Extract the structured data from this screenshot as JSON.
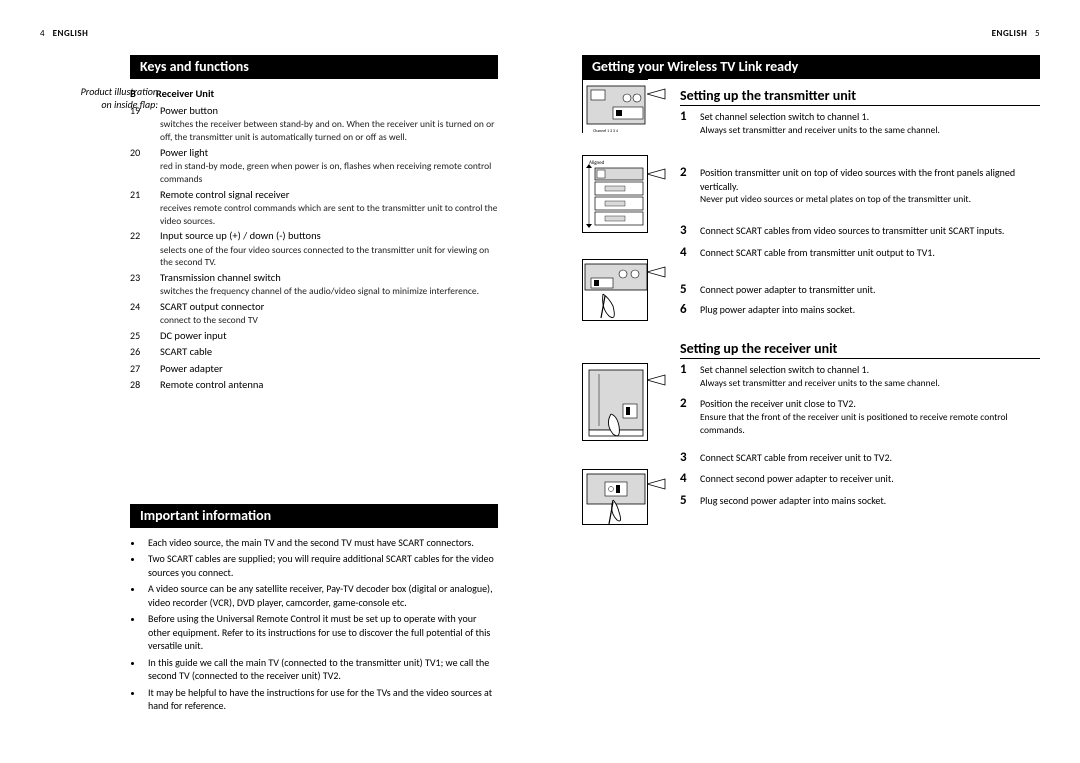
{
  "left": {
    "page_num": "4",
    "lang": "ENGLISH",
    "margin_note_l1": "Product illustration",
    "margin_note_l2": "on inside flap:",
    "bar_keys": "Keys and functions",
    "sub_b": "B",
    "sub_receiver": "Receiver Unit",
    "keys": [
      {
        "n": "19",
        "term": "Power button",
        "desc": "switches the receiver between stand-by and on. When the receiver unit is turned on or off, the transmitter unit is automatically turned on or off as well."
      },
      {
        "n": "20",
        "term": "Power light",
        "desc": "red in stand-by mode, green when power is on, flashes when receiving remote control commands"
      },
      {
        "n": "21",
        "term": "Remote control signal receiver",
        "desc": "receives remote control commands which are sent to the transmitter unit to control the video sources."
      },
      {
        "n": "22",
        "term": "Input source up (+) / down (-) buttons",
        "desc": "selects one of the four video sources connected to the transmitter unit for viewing on the second TV."
      },
      {
        "n": "23",
        "term": "Transmission channel switch",
        "desc": "switches the frequency channel of the audio/video signal to minimize interference."
      },
      {
        "n": "24",
        "term": "SCART output connector",
        "desc": "connect to the second TV"
      },
      {
        "n": "25",
        "term": "DC power input",
        "desc": ""
      },
      {
        "n": "26",
        "term": "SCART cable",
        "desc": ""
      },
      {
        "n": "27",
        "term": "Power adapter",
        "desc": ""
      },
      {
        "n": "28",
        "term": "Remote control antenna",
        "desc": ""
      }
    ],
    "bar_important": "Important information",
    "important": [
      "Each video source, the main TV and the second TV must have SCART connectors.",
      "Two SCART cables are supplied; you will require additional SCART cables for the video sources you connect.",
      "A video source can be any satellite receiver, Pay-TV decoder box (digital or analogue), video recorder (VCR), DVD player, camcorder, game-console etc.",
      "Before using the Universal Remote Control it must be set up to operate with your other equipment. Refer to its instructions for use to discover the full potential of this versatile unit.",
      "In this guide we call the main TV (connected to the transmitter unit) TV1; we call the second TV (connected to the receiver unit) TV2.",
      "It may be helpful to have the instructions for use for the TVs and the video sources at hand for reference."
    ]
  },
  "right": {
    "page_num": "5",
    "lang": "ENGLISH",
    "bar_ready": "Getting your Wireless TV Link ready",
    "h_tx": "Setting up the transmitter unit",
    "tx_steps": [
      {
        "n": "1",
        "main": "Set channel selection switch to channel 1.",
        "note": "Always set transmitter and receiver units to the same channel."
      },
      {
        "n": "2",
        "main": "Position transmitter unit on top of video sources with the front panels aligned vertically.",
        "note": "Never put video sources or metal plates on top of the transmitter unit."
      },
      {
        "n": "3",
        "main": "Connect SCART cables from video sources to transmitter unit SCART inputs.",
        "note": ""
      },
      {
        "n": "4",
        "main": "Connect SCART cable from transmitter unit output to TV1.",
        "note": ""
      },
      {
        "n": "5",
        "main": "Connect power adapter to transmitter unit.",
        "note": ""
      },
      {
        "n": "6",
        "main": "Plug power adapter into mains socket.",
        "note": ""
      }
    ],
    "h_rx": "Setting up the receiver unit",
    "rx_steps": [
      {
        "n": "1",
        "main": "Set channel selection switch to channel 1.",
        "note": "Always set transmitter and receiver units to the same channel."
      },
      {
        "n": "2",
        "main": "Position the receiver unit close to TV2.",
        "note": "Ensure that the front of the receiver unit is positioned to receive remote control commands."
      },
      {
        "n": "3",
        "main": "Connect SCART cable from receiver unit to TV2.",
        "note": ""
      },
      {
        "n": "4",
        "main": "Connect second power adapter to receiver unit.",
        "note": ""
      },
      {
        "n": "5",
        "main": "Plug second power adapter into mains socket.",
        "note": ""
      }
    ],
    "illus_colors": {
      "stroke": "#000000",
      "fill": "#ffffff",
      "shade": "#d9d9d9"
    }
  }
}
